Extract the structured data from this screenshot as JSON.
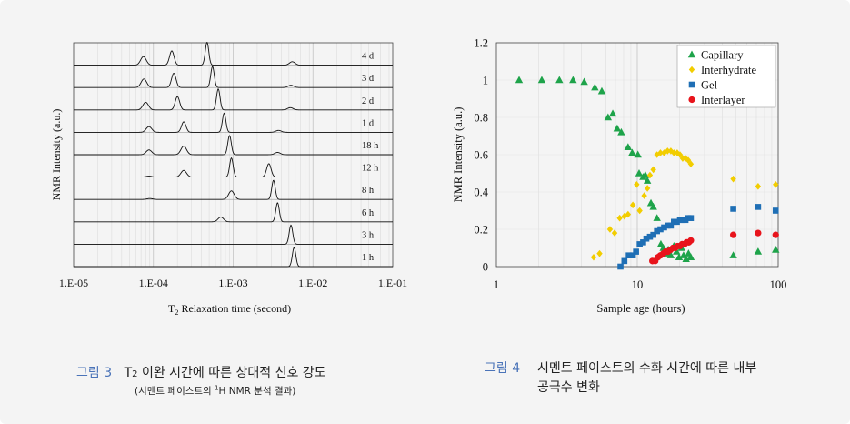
{
  "colors": {
    "background": "#f4f4f4",
    "caption_label": "#4a73b8",
    "green": "#1ea34a",
    "yellow": "#f2cd00",
    "blue": "#1f6fb5",
    "red": "#e8141c"
  },
  "captions": {
    "fig3_label": "그림 3",
    "fig3_title_pre": "T",
    "fig3_title_sub": "2",
    "fig3_title_post": " 이완 시간에 따른 상대적 신호 강도",
    "fig3_sub_pre": "(시멘트 페이스트의 ",
    "fig3_sub_sup": "1",
    "fig3_sub_post": "H NMR 분석 결과)",
    "fig4_label": "그림 4",
    "fig4_line1": "시멘트 페이스트의 수화 시간에 따른 내부",
    "fig4_line2": "공극수 변화"
  },
  "chart_data": [
    {
      "type": "line",
      "ylabel": "NMR Intensity (a.u.)",
      "xlabel_pre": "T",
      "xlabel_sub": "2",
      "xlabel_post": " Relaxation time (second)",
      "xscale": "log",
      "xlim": [
        1e-05,
        0.1
      ],
      "x_ticks": [
        "1.E-05",
        "1.E-04",
        "1.E-03",
        "1.E-02",
        "1.E-01"
      ],
      "grid": "vertical minor",
      "rows": [
        {
          "label": "4 d",
          "peaks": [
            {
              "t": 7.5e-05,
              "h": 0.45
            },
            {
              "t": 0.00017,
              "h": 0.75
            },
            {
              "t": 0.00047,
              "h": 1.2
            },
            {
              "t": 0.0055,
              "h": 0.18
            }
          ]
        },
        {
          "label": "3 d",
          "peaks": [
            {
              "t": 7.6e-05,
              "h": 0.45
            },
            {
              "t": 0.00018,
              "h": 0.75
            },
            {
              "t": 0.00055,
              "h": 1.1
            },
            {
              "t": 0.0053,
              "h": 0.12
            }
          ]
        },
        {
          "label": "2 d",
          "peaks": [
            {
              "t": 8e-05,
              "h": 0.4
            },
            {
              "t": 0.0002,
              "h": 0.7
            },
            {
              "t": 0.00065,
              "h": 1.1
            },
            {
              "t": 0.0052,
              "h": 0.12
            }
          ]
        },
        {
          "label": "1 d",
          "peaks": [
            {
              "t": 8.8e-05,
              "h": 0.3
            },
            {
              "t": 0.00024,
              "h": 0.55
            },
            {
              "t": 0.00077,
              "h": 1.0
            },
            {
              "t": 0.0037,
              "h": 0.1
            }
          ]
        },
        {
          "label": "18 h",
          "peaks": [
            {
              "t": 8.8e-05,
              "h": 0.25
            },
            {
              "t": 0.00024,
              "h": 0.45
            },
            {
              "t": 0.0009,
              "h": 1.0
            },
            {
              "t": 0.0036,
              "h": 0.12
            }
          ]
        },
        {
          "label": "12 h",
          "peaks": [
            {
              "t": 8.8e-05,
              "h": 0.05
            },
            {
              "t": 0.00024,
              "h": 0.35
            },
            {
              "t": 0.00095,
              "h": 1.0
            },
            {
              "t": 0.0028,
              "h": 0.7
            }
          ]
        },
        {
          "label": "8 h",
          "peaks": [
            {
              "t": 9e-05,
              "h": 0.05
            },
            {
              "t": 0.00095,
              "h": 0.45
            },
            {
              "t": 0.0032,
              "h": 1.0
            }
          ]
        },
        {
          "label": "6 h",
          "peaks": [
            {
              "t": 0.0007,
              "h": 0.25
            },
            {
              "t": 0.0036,
              "h": 1.0
            }
          ]
        },
        {
          "label": "3 h",
          "peaks": [
            {
              "t": 0.0053,
              "h": 1.0
            }
          ]
        },
        {
          "label": "1 h",
          "peaks": [
            {
              "t": 0.0058,
              "h": 1.0
            }
          ]
        }
      ]
    },
    {
      "type": "scatter",
      "xlabel": "Sample age (hours)",
      "ylabel": "NMR Intensity (a.u.)",
      "xscale": "log",
      "xlim": [
        1,
        100
      ],
      "ylim": [
        0,
        1.2
      ],
      "x_ticks": [
        "1",
        "10",
        "100"
      ],
      "y_ticks": [
        "0",
        "0.2",
        "0.4",
        "0.6",
        "0.8",
        "1",
        "1.2"
      ],
      "legend_position": "top-right",
      "series": [
        {
          "name": "Capillary",
          "marker": "triangle",
          "color": "#1ea34a",
          "points": [
            [
              1.45,
              1.0
            ],
            [
              2.1,
              1.0
            ],
            [
              2.8,
              1.0
            ],
            [
              3.5,
              1.0
            ],
            [
              4.2,
              0.99
            ],
            [
              5.0,
              0.96
            ],
            [
              5.6,
              0.94
            ],
            [
              6.2,
              0.8
            ],
            [
              6.7,
              0.82
            ],
            [
              7.2,
              0.74
            ],
            [
              7.7,
              0.72
            ],
            [
              8.6,
              0.64
            ],
            [
              9.2,
              0.61
            ],
            [
              10.1,
              0.6
            ],
            [
              10.3,
              0.5
            ],
            [
              11.0,
              0.48
            ],
            [
              11.4,
              0.49
            ],
            [
              11.8,
              0.46
            ],
            [
              12.5,
              0.34
            ],
            [
              13.0,
              0.32
            ],
            [
              13.8,
              0.26
            ],
            [
              14.7,
              0.12
            ],
            [
              15.3,
              0.1
            ],
            [
              16.0,
              0.07
            ],
            [
              16.6,
              0.09
            ],
            [
              17.3,
              0.06
            ],
            [
              18.2,
              0.11
            ],
            [
              19.0,
              0.08
            ],
            [
              19.8,
              0.05
            ],
            [
              20.6,
              0.1
            ],
            [
              21.3,
              0.06
            ],
            [
              22.2,
              0.04
            ],
            [
              23.1,
              0.07
            ],
            [
              24.0,
              0.05
            ],
            [
              48,
              0.06
            ],
            [
              72,
              0.08
            ],
            [
              96,
              0.09
            ]
          ]
        },
        {
          "name": "Interhydrate",
          "marker": "diamond",
          "color": "#f2cd00",
          "points": [
            [
              4.9,
              0.05
            ],
            [
              5.4,
              0.07
            ],
            [
              6.4,
              0.2
            ],
            [
              6.9,
              0.18
            ],
            [
              7.5,
              0.26
            ],
            [
              8.1,
              0.27
            ],
            [
              8.6,
              0.28
            ],
            [
              9.3,
              0.33
            ],
            [
              9.9,
              0.44
            ],
            [
              10.4,
              0.3
            ],
            [
              11.2,
              0.38
            ],
            [
              11.8,
              0.42
            ],
            [
              12.3,
              0.49
            ],
            [
              13.0,
              0.52
            ],
            [
              13.8,
              0.6
            ],
            [
              14.6,
              0.61
            ],
            [
              15.5,
              0.61
            ],
            [
              16.4,
              0.62
            ],
            [
              17.3,
              0.62
            ],
            [
              18.2,
              0.61
            ],
            [
              19.2,
              0.61
            ],
            [
              20.1,
              0.6
            ],
            [
              21.0,
              0.58
            ],
            [
              22.0,
              0.58
            ],
            [
              23.0,
              0.57
            ],
            [
              24.0,
              0.55
            ],
            [
              48,
              0.47
            ],
            [
              72,
              0.43
            ],
            [
              96,
              0.44
            ]
          ]
        },
        {
          "name": "Gel",
          "marker": "square",
          "color": "#1f6fb5",
          "points": [
            [
              7.6,
              0.0
            ],
            [
              8.1,
              0.03
            ],
            [
              8.7,
              0.06
            ],
            [
              9.3,
              0.06
            ],
            [
              9.8,
              0.08
            ],
            [
              10.4,
              0.12
            ],
            [
              11.0,
              0.13
            ],
            [
              11.6,
              0.15
            ],
            [
              12.3,
              0.16
            ],
            [
              13.0,
              0.17
            ],
            [
              13.8,
              0.19
            ],
            [
              14.6,
              0.2
            ],
            [
              15.5,
              0.21
            ],
            [
              16.4,
              0.22
            ],
            [
              17.3,
              0.22
            ],
            [
              18.2,
              0.24
            ],
            [
              19.1,
              0.24
            ],
            [
              20.1,
              0.25
            ],
            [
              21.0,
              0.25
            ],
            [
              22.0,
              0.25
            ],
            [
              23.0,
              0.26
            ],
            [
              24.0,
              0.26
            ],
            [
              48,
              0.31
            ],
            [
              72,
              0.32
            ],
            [
              96,
              0.3
            ]
          ]
        },
        {
          "name": "Interlayer",
          "marker": "circle",
          "color": "#e8141c",
          "points": [
            [
              12.8,
              0.03
            ],
            [
              13.4,
              0.03
            ],
            [
              14.0,
              0.05
            ],
            [
              14.6,
              0.06
            ],
            [
              15.3,
              0.07
            ],
            [
              15.9,
              0.08
            ],
            [
              16.5,
              0.08
            ],
            [
              17.2,
              0.09
            ],
            [
              17.9,
              0.1
            ],
            [
              18.6,
              0.1
            ],
            [
              19.3,
              0.11
            ],
            [
              20.1,
              0.11
            ],
            [
              20.8,
              0.12
            ],
            [
              21.6,
              0.12
            ],
            [
              22.4,
              0.13
            ],
            [
              23.2,
              0.13
            ],
            [
              24.0,
              0.14
            ],
            [
              48,
              0.17
            ],
            [
              72,
              0.18
            ],
            [
              96,
              0.17
            ]
          ]
        }
      ]
    }
  ]
}
